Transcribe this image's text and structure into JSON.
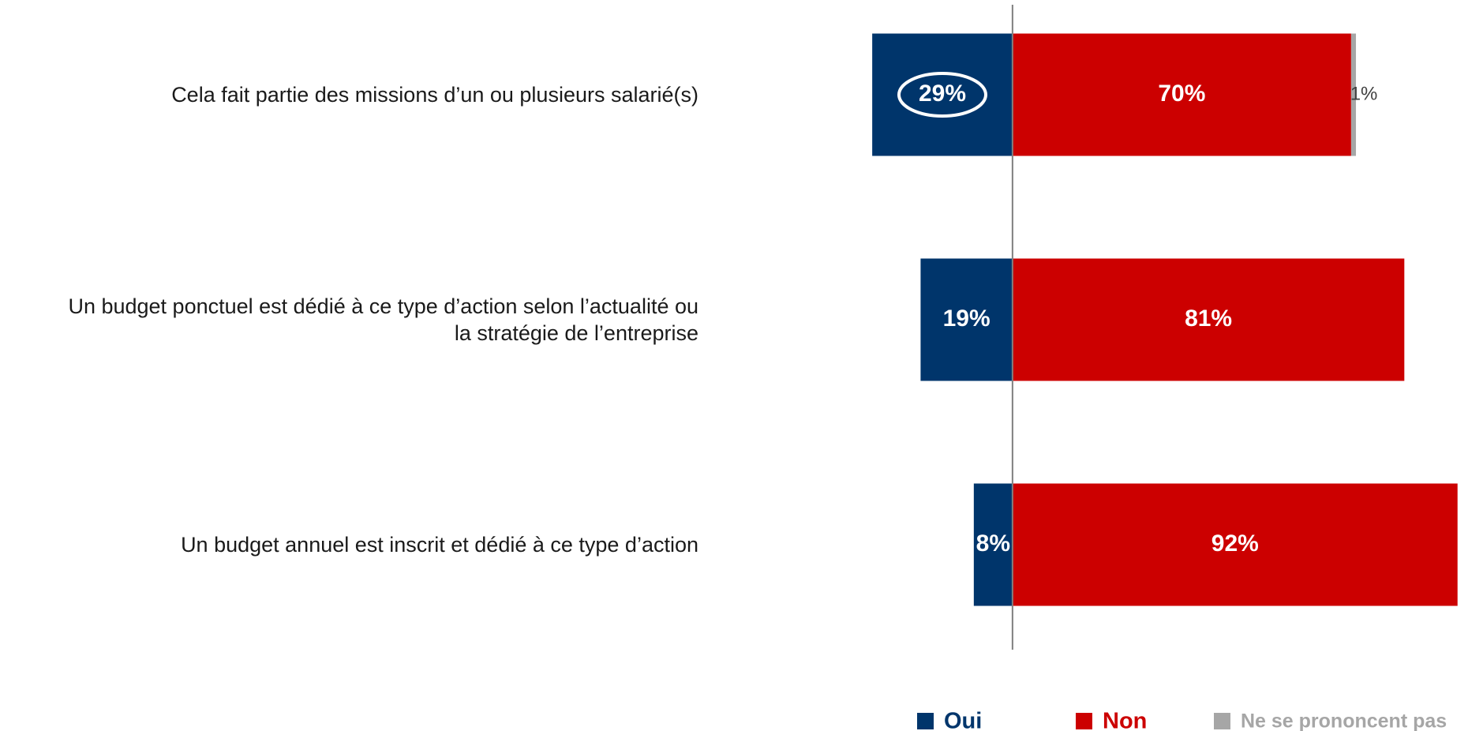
{
  "chart_data": {
    "type": "diverging-bar",
    "categories": [
      "Cela fait partie des missions d’un ou plusieurs salarié(s)",
      "Un budget ponctuel est dédié à ce type d’action selon l’actualité ou\nla stratégie de l’entreprise",
      "Un budget annuel est inscrit et dédié à ce type d’action"
    ],
    "series": [
      {
        "name": "Oui",
        "color": "#00356b",
        "values": [
          29,
          19,
          8
        ],
        "value_labels": [
          "29%",
          "19%",
          "8%"
        ]
      },
      {
        "name": "Non",
        "color": "#cc0000",
        "values": [
          70,
          81,
          92
        ],
        "value_labels": [
          "70%",
          "81%",
          "92%"
        ]
      },
      {
        "name": "Ne se prononcent pas",
        "color": "#a6a6a6",
        "values": [
          1,
          null,
          null
        ],
        "value_labels": [
          "1%",
          null,
          null
        ]
      }
    ],
    "xlim": [
      -30,
      94
    ]
  }
}
